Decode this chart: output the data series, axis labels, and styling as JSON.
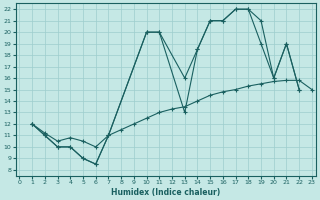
{
  "xlabel": "Humidex (Indice chaleur)",
  "bg_color": "#c5e8e5",
  "grid_color": "#9ecece",
  "line_color": "#1a6060",
  "xlim": [
    -0.3,
    23.3
  ],
  "ylim": [
    7.5,
    22.5
  ],
  "xticks": [
    0,
    1,
    2,
    3,
    4,
    5,
    6,
    7,
    8,
    9,
    10,
    11,
    12,
    13,
    14,
    15,
    16,
    17,
    18,
    19,
    20,
    21,
    22,
    23
  ],
  "yticks": [
    8,
    9,
    10,
    11,
    12,
    13,
    14,
    15,
    16,
    17,
    18,
    19,
    20,
    21,
    22
  ],
  "curve1_x": [
    1,
    2,
    3,
    4,
    5,
    6,
    7,
    10,
    11,
    13,
    14,
    15,
    16,
    17,
    18,
    19,
    20,
    21,
    22
  ],
  "curve1_y": [
    12,
    11,
    10,
    10,
    9,
    8.5,
    11,
    20,
    20,
    16,
    18.5,
    21,
    21,
    22,
    22,
    21,
    16,
    19,
    15
  ],
  "curve2_x": [
    1,
    2,
    3,
    4,
    5,
    6,
    7,
    10,
    11,
    13,
    14,
    15,
    16,
    17,
    18,
    19,
    20,
    21,
    22
  ],
  "curve2_y": [
    12,
    11,
    10,
    10,
    9,
    8.5,
    11,
    20,
    20,
    13,
    18.5,
    21,
    21,
    22,
    22,
    19,
    16,
    19,
    15
  ],
  "curve3_x": [
    1,
    2,
    3,
    4,
    5,
    6,
    7,
    8,
    9,
    10,
    11,
    12,
    13,
    14,
    15,
    16,
    17,
    18,
    19,
    20,
    21,
    22,
    23
  ],
  "curve3_y": [
    12,
    11.2,
    10.5,
    10.8,
    10.5,
    10,
    11,
    11.5,
    12,
    12.5,
    13,
    13.3,
    13.5,
    14,
    14.5,
    14.8,
    15,
    15.3,
    15.5,
    15.7,
    15.8,
    15.8,
    15
  ]
}
